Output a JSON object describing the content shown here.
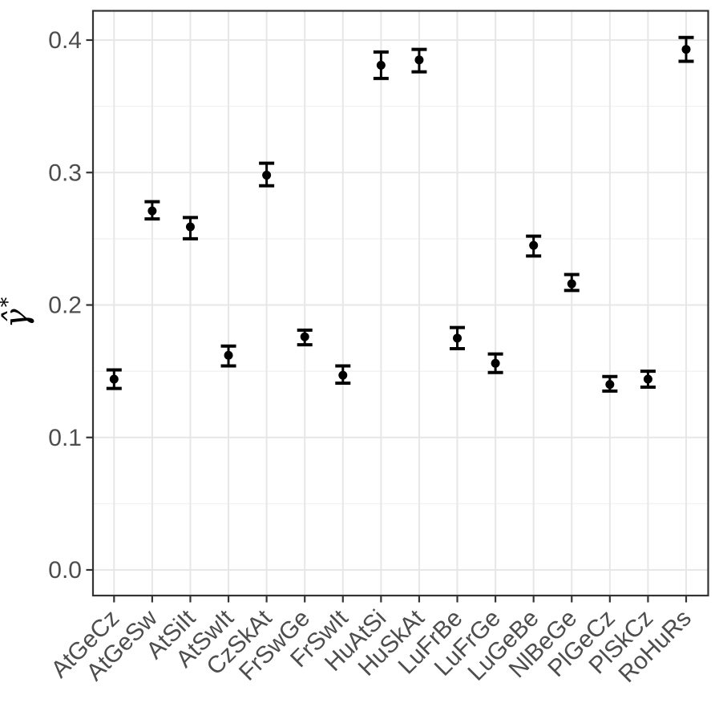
{
  "chart_data": {
    "type": "scatter",
    "subtype": "pointrange",
    "title": "",
    "xlabel": "",
    "ylabel_base": "γ̂",
    "ylabel_sup": "*",
    "categories": [
      "AtGeCz",
      "AtGeSw",
      "AtSiIt",
      "AtSwIt",
      "CzSkAt",
      "FrSwGe",
      "FrSwIt",
      "HuAtSi",
      "HuSkAt",
      "LuFrBe",
      "LuFrGe",
      "LuGeBe",
      "NlBeGe",
      "PlGeCz",
      "PlSkCz",
      "RoHuRs"
    ],
    "series": [
      {
        "name": "gamma_hat_star",
        "values": [
          0.144,
          0.271,
          0.259,
          0.162,
          0.298,
          0.176,
          0.147,
          0.381,
          0.385,
          0.175,
          0.156,
          0.245,
          0.216,
          0.14,
          0.144,
          0.393
        ],
        "err_low": [
          0.137,
          0.265,
          0.25,
          0.154,
          0.29,
          0.17,
          0.141,
          0.371,
          0.376,
          0.167,
          0.149,
          0.237,
          0.211,
          0.135,
          0.138,
          0.384
        ],
        "err_high": [
          0.151,
          0.278,
          0.266,
          0.169,
          0.307,
          0.181,
          0.154,
          0.391,
          0.393,
          0.183,
          0.163,
          0.252,
          0.223,
          0.146,
          0.15,
          0.402
        ]
      }
    ],
    "ylim": [
      -0.019,
      0.422
    ],
    "yticks": [
      0.0,
      0.1,
      0.2,
      0.3,
      0.4
    ],
    "ytick_labels": [
      "0.0",
      "0.1",
      "0.2",
      "0.3",
      "0.4"
    ],
    "yminor": [
      0.05,
      0.15,
      0.25,
      0.35
    ],
    "grid": "major-and-minor-horizontal, major-vertical-at-categories",
    "legend": "none",
    "colors": {
      "point": "#000000",
      "grid_major": "#e7e7e7",
      "grid_minor": "#f1f1f1",
      "panel_border": "#333333",
      "tick_mark": "#333333",
      "tick_label": "#4d4d4d",
      "background": "#ffffff"
    }
  }
}
